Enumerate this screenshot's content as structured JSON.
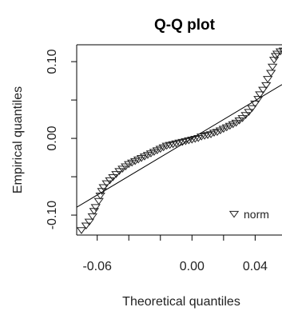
{
  "chart_data": {
    "type": "scatter",
    "title": "Q-Q plot",
    "xlabel": "Theoretical quantiles",
    "ylabel": "Empirical quantiles",
    "xlim": [
      -0.073,
      0.057
    ],
    "ylim": [
      -0.126,
      0.122
    ],
    "x_ticks": [
      -0.06,
      -0.04,
      -0.02,
      0.0,
      0.02,
      0.04
    ],
    "x_tick_labels": [
      "-0.06",
      "",
      "",
      "0.00",
      "",
      "0.04"
    ],
    "y_ticks": [
      -0.1,
      -0.05,
      0.0,
      0.05,
      0.1
    ],
    "y_tick_labels": [
      "-0.10",
      "",
      "0.00",
      "",
      "0.10"
    ],
    "reference_line": {
      "slope": 1.23,
      "intercept": 0.0
    },
    "legend": {
      "entries": [
        "norm"
      ],
      "marker": "triangle-down",
      "placement": "bottom-right"
    },
    "series": [
      {
        "name": "norm",
        "marker": "triangle-down",
        "points": [
          [
            -0.07,
            -0.119
          ],
          [
            -0.067,
            -0.113
          ],
          [
            -0.065,
            -0.108
          ],
          [
            -0.063,
            -0.101
          ],
          [
            -0.062,
            -0.094
          ],
          [
            -0.061,
            -0.089
          ],
          [
            -0.059,
            -0.081
          ],
          [
            -0.058,
            -0.074
          ],
          [
            -0.057,
            -0.068
          ],
          [
            -0.056,
            -0.063
          ],
          [
            -0.054,
            -0.058
          ],
          [
            -0.052,
            -0.054
          ],
          [
            -0.05,
            -0.05
          ],
          [
            -0.048,
            -0.046
          ],
          [
            -0.046,
            -0.042
          ],
          [
            -0.044,
            -0.039
          ],
          [
            -0.042,
            -0.036
          ],
          [
            -0.04,
            -0.033
          ],
          [
            -0.038,
            -0.031
          ],
          [
            -0.036,
            -0.029
          ],
          [
            -0.034,
            -0.027
          ],
          [
            -0.032,
            -0.025
          ],
          [
            -0.03,
            -0.023
          ],
          [
            -0.028,
            -0.021
          ],
          [
            -0.026,
            -0.019
          ],
          [
            -0.024,
            -0.017
          ],
          [
            -0.022,
            -0.015
          ],
          [
            -0.02,
            -0.013
          ],
          [
            -0.018,
            -0.011
          ],
          [
            -0.016,
            -0.009
          ],
          [
            -0.014,
            -0.008
          ],
          [
            -0.012,
            -0.007
          ],
          [
            -0.01,
            -0.006
          ],
          [
            -0.008,
            -0.005
          ],
          [
            -0.006,
            -0.004
          ],
          [
            -0.004,
            -0.003
          ],
          [
            -0.002,
            -0.002
          ],
          [
            0.0,
            -0.001
          ],
          [
            0.002,
            0.0
          ],
          [
            0.004,
            0.001
          ],
          [
            0.006,
            0.003
          ],
          [
            0.008,
            0.004
          ],
          [
            0.01,
            0.005
          ],
          [
            0.012,
            0.006
          ],
          [
            0.014,
            0.008
          ],
          [
            0.016,
            0.009
          ],
          [
            0.018,
            0.011
          ],
          [
            0.02,
            0.013
          ],
          [
            0.022,
            0.015
          ],
          [
            0.024,
            0.017
          ],
          [
            0.026,
            0.019
          ],
          [
            0.028,
            0.021
          ],
          [
            0.03,
            0.024
          ],
          [
            0.032,
            0.027
          ],
          [
            0.034,
            0.031
          ],
          [
            0.036,
            0.035
          ],
          [
            0.038,
            0.04
          ],
          [
            0.04,
            0.046
          ],
          [
            0.042,
            0.052
          ],
          [
            0.043,
            0.058
          ],
          [
            0.045,
            0.064
          ],
          [
            0.047,
            0.07
          ],
          [
            0.048,
            0.078
          ],
          [
            0.05,
            0.086
          ],
          [
            0.051,
            0.094
          ],
          [
            0.052,
            0.103
          ],
          [
            0.053,
            0.108
          ],
          [
            0.054,
            0.111
          ],
          [
            0.056,
            0.114
          ],
          [
            0.058,
            0.115
          ]
        ]
      }
    ]
  }
}
